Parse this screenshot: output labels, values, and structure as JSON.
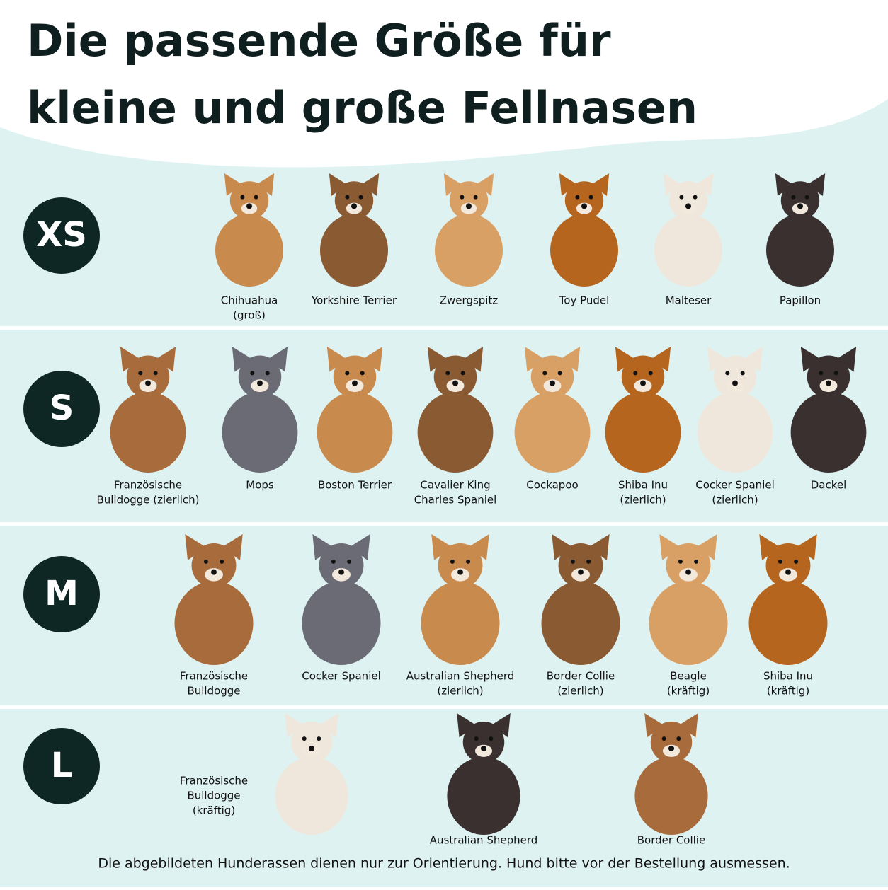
{
  "header": {
    "title": [
      "Die passende Größe für",
      "kleine und große Fellnasen"
    ]
  },
  "sizes": [
    {
      "label": "XS",
      "breeds": [
        [
          "Chihuahua",
          "(groß)"
        ],
        [
          "Yorkshire Terrier"
        ],
        [
          "Zwergspitz"
        ],
        [
          "Toy Pudel"
        ],
        [
          "Malteser"
        ],
        [
          "Papillon"
        ]
      ]
    },
    {
      "label": "S",
      "breeds": [
        [
          "Französische",
          "Bulldogge (zierlich)"
        ],
        [
          "Mops"
        ],
        [
          "Boston Terrier"
        ],
        [
          "Cavalier King",
          "Charles Spaniel"
        ],
        [
          "Cockapoo"
        ],
        [
          "Shiba Inu",
          "(zierlich)"
        ],
        [
          "Cocker Spaniel",
          "(zierlich)"
        ],
        [
          "Dackel"
        ]
      ]
    },
    {
      "label": "M",
      "breeds": [
        [
          "Französische",
          "Bulldogge"
        ],
        [
          "Cocker Spaniel"
        ],
        [
          "Australian Shepherd",
          "(zierlich)"
        ],
        [
          "Border Collie",
          "(zierlich)"
        ],
        [
          "Beagle",
          "(kräftig)"
        ],
        [
          "Shiba Inu",
          "(kräftig)"
        ]
      ]
    },
    {
      "label": "L",
      "breeds": [
        [
          "Französische",
          "Bulldogge",
          "(kräftig)"
        ],
        [
          "Australian Shepherd"
        ],
        [
          "Border Collie"
        ]
      ]
    }
  ],
  "footer": "Die abgebildeten Hunderassen dienen nur zur Orientierung. Hund bitte vor der Bestellung ausmessen."
}
